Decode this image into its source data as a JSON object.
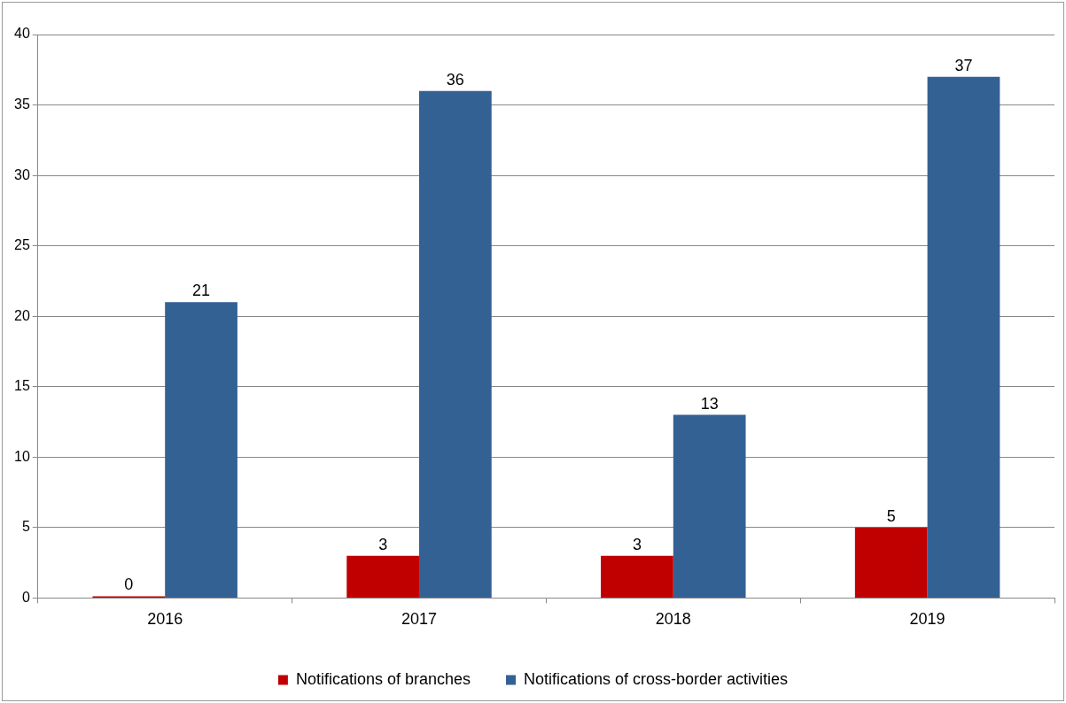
{
  "chart_data": {
    "type": "bar",
    "categories": [
      "2016",
      "2017",
      "2018",
      "2019"
    ],
    "series": [
      {
        "name": "Notifications of branches",
        "color": "#c00000",
        "values": [
          0,
          3,
          3,
          5
        ]
      },
      {
        "name": "Notifications of cross-border activities",
        "color": "#346194",
        "values": [
          21,
          36,
          13,
          37
        ]
      }
    ],
    "ylim": [
      0,
      40
    ],
    "yticks": [
      0,
      5,
      10,
      15,
      20,
      25,
      30,
      35,
      40
    ],
    "grid": "y",
    "legend": "bottom",
    "data_labels": true
  }
}
